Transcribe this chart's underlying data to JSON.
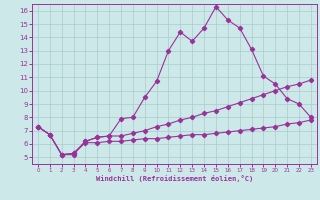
{
  "x": [
    0,
    1,
    2,
    3,
    4,
    5,
    6,
    7,
    8,
    9,
    10,
    11,
    12,
    13,
    14,
    15,
    16,
    17,
    18,
    19,
    20,
    21,
    22,
    23
  ],
  "line1": [
    7.3,
    6.7,
    5.2,
    5.2,
    6.2,
    6.5,
    6.6,
    7.9,
    8.0,
    9.5,
    10.7,
    13.0,
    14.4,
    13.7,
    14.7,
    16.3,
    15.3,
    14.7,
    13.1,
    11.1,
    10.5,
    9.4,
    9.0,
    8.0
  ],
  "line2": [
    7.3,
    6.7,
    5.2,
    5.3,
    6.2,
    6.5,
    6.6,
    6.6,
    6.8,
    7.0,
    7.3,
    7.5,
    7.8,
    8.0,
    8.3,
    8.5,
    8.8,
    9.1,
    9.4,
    9.7,
    10.0,
    10.3,
    10.5,
    10.8
  ],
  "line3": [
    7.3,
    6.7,
    5.2,
    5.3,
    6.1,
    6.1,
    6.2,
    6.2,
    6.3,
    6.4,
    6.4,
    6.5,
    6.6,
    6.7,
    6.7,
    6.8,
    6.9,
    7.0,
    7.1,
    7.2,
    7.3,
    7.5,
    7.6,
    7.8
  ],
  "color": "#993399",
  "bg_color": "#cce8e8",
  "grid_color": "#aacccc",
  "xlabel": "Windchill (Refroidissement éolien,°C)",
  "ylim": [
    4.5,
    16.5
  ],
  "xlim": [
    -0.5,
    23.5
  ],
  "yticks": [
    5,
    6,
    7,
    8,
    9,
    10,
    11,
    12,
    13,
    14,
    15,
    16
  ],
  "xticks": [
    0,
    1,
    2,
    3,
    4,
    5,
    6,
    7,
    8,
    9,
    10,
    11,
    12,
    13,
    14,
    15,
    16,
    17,
    18,
    19,
    20,
    21,
    22,
    23
  ]
}
